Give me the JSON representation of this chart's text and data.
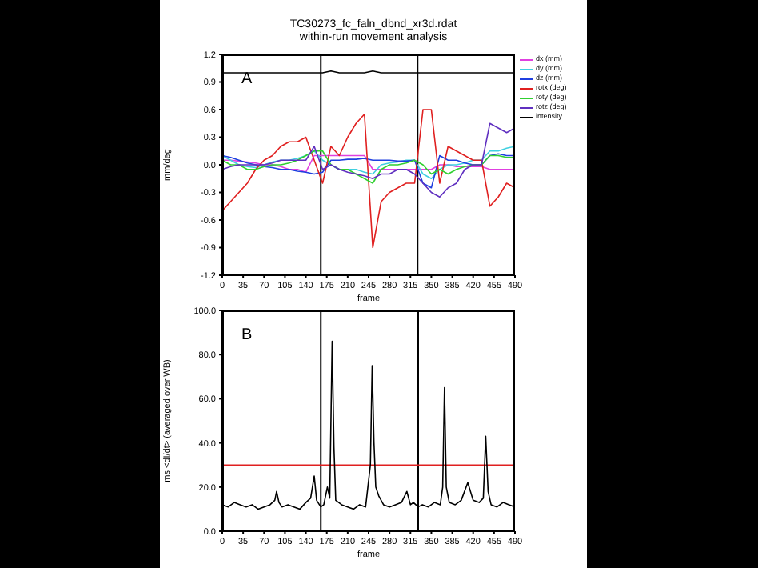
{
  "chart_data": [
    {
      "type": "line",
      "title": "TC30273_fc_faln_dbnd_xr3d.rdat",
      "subtitle": "within-run movement analysis",
      "xlabel": "frame",
      "ylabel": "mm/deg",
      "annotations": [
        "A"
      ],
      "legend": "top right",
      "x": [
        0,
        14,
        28,
        42,
        56,
        70,
        84,
        98,
        112,
        126,
        140,
        154,
        168,
        182,
        196,
        210,
        224,
        238,
        252,
        266,
        280,
        294,
        308,
        322,
        336,
        350,
        364,
        378,
        392,
        406,
        420,
        434,
        448,
        462,
        476,
        490
      ],
      "xlim": [
        0,
        490
      ],
      "xticks": [
        0,
        35,
        70,
        105,
        140,
        175,
        210,
        245,
        280,
        315,
        350,
        385,
        420,
        455,
        490
      ],
      "ylim": [
        -1.2,
        1.2
      ],
      "yticks": [
        -1.2,
        -0.9,
        -0.6,
        -0.3,
        {
          "value": 0,
          "label": "0.0"
        },
        0.3,
        0.6,
        0.9,
        1.2
      ],
      "ref_lines": [
        {
          "axis": "x",
          "value": 165,
          "color": "#000000"
        },
        {
          "axis": "x",
          "value": 327,
          "color": "#000000"
        }
      ],
      "series": [
        {
          "name": "dx (mm)",
          "color": "#e040e0",
          "values": [
            0.05,
            0.05,
            0.04,
            0.03,
            0.02,
            0.0,
            0.0,
            -0.02,
            -0.05,
            -0.05,
            -0.08,
            0.1,
            0.1,
            0.1,
            0.1,
            0.1,
            0.1,
            0.1,
            -0.05,
            -0.05,
            -0.05,
            -0.05,
            -0.05,
            -0.05,
            -0.05,
            -0.05,
            0.0,
            0.0,
            -0.02,
            -0.02,
            -0.02,
            -0.02,
            -0.05,
            -0.05,
            -0.05,
            -0.05
          ]
        },
        {
          "name": "dy (mm)",
          "color": "#40d0e0",
          "values": [
            0.1,
            0.05,
            0.0,
            -0.02,
            -0.03,
            0.0,
            0.03,
            0.05,
            0.05,
            0.07,
            0.1,
            0.15,
            0.05,
            0.0,
            -0.05,
            -0.05,
            -0.05,
            -0.08,
            -0.1,
            0.0,
            0.02,
            0.03,
            0.05,
            0.05,
            -0.1,
            -0.15,
            -0.05,
            0.0,
            0.0,
            0.02,
            0.05,
            0.05,
            0.15,
            0.15,
            0.18,
            0.2
          ]
        },
        {
          "name": "dz (mm)",
          "color": "#2040e0",
          "values": [
            0.1,
            0.08,
            0.05,
            0.02,
            0.0,
            -0.02,
            -0.03,
            -0.05,
            -0.05,
            -0.07,
            -0.08,
            -0.1,
            -0.08,
            0.05,
            0.05,
            0.06,
            0.06,
            0.07,
            0.05,
            0.05,
            0.05,
            0.04,
            0.04,
            0.05,
            -0.2,
            -0.25,
            0.1,
            0.05,
            0.05,
            0.02,
            0.0,
            0.0,
            0.1,
            0.12,
            0.1,
            0.1
          ]
        },
        {
          "name": "rotx (deg)",
          "color": "#e02020",
          "values": [
            -0.5,
            -0.4,
            -0.3,
            -0.2,
            -0.05,
            0.05,
            0.1,
            0.2,
            0.25,
            0.25,
            0.3,
            0.05,
            -0.2,
            0.2,
            0.1,
            0.3,
            0.45,
            0.55,
            -0.9,
            -0.4,
            -0.3,
            -0.25,
            -0.2,
            -0.2,
            0.6,
            0.6,
            -0.2,
            0.2,
            0.15,
            0.1,
            0.05,
            0.05,
            -0.45,
            -0.35,
            -0.2,
            -0.25
          ]
        },
        {
          "name": "roty (deg)",
          "color": "#30d030",
          "values": [
            0.05,
            0.0,
            0.0,
            -0.05,
            -0.05,
            -0.02,
            0.0,
            0.0,
            0.02,
            0.05,
            0.1,
            0.15,
            0.15,
            0.0,
            -0.05,
            -0.05,
            -0.1,
            -0.15,
            -0.2,
            -0.05,
            0.0,
            0.0,
            0.02,
            0.05,
            0.0,
            -0.1,
            -0.05,
            -0.1,
            -0.05,
            -0.02,
            0.0,
            0.0,
            0.1,
            0.1,
            0.08,
            0.08
          ]
        },
        {
          "name": "rotz (deg)",
          "color": "#6030c0",
          "values": [
            -0.05,
            -0.02,
            0.0,
            0.0,
            0.0,
            0.0,
            0.02,
            0.05,
            0.05,
            0.05,
            0.05,
            0.2,
            -0.05,
            0.0,
            -0.05,
            -0.08,
            -0.1,
            -0.12,
            -0.15,
            -0.1,
            -0.1,
            -0.05,
            -0.05,
            -0.1,
            -0.2,
            -0.3,
            -0.35,
            -0.25,
            -0.2,
            -0.05,
            0.0,
            0.0,
            0.45,
            0.4,
            0.35,
            0.4
          ]
        },
        {
          "name": "intensity",
          "color": "#000000",
          "values": [
            1.0,
            1.0,
            1.0,
            1.0,
            1.0,
            1.0,
            1.0,
            1.0,
            1.0,
            1.0,
            1.0,
            1.0,
            1.0,
            1.02,
            1.0,
            1.0,
            1.0,
            1.0,
            1.02,
            1.0,
            1.0,
            1.0,
            1.0,
            1.0,
            1.0,
            1.0,
            1.0,
            1.0,
            1.0,
            1.0,
            1.0,
            1.0,
            1.0,
            1.0,
            1.0,
            1.0
          ]
        }
      ]
    },
    {
      "type": "line",
      "xlabel": "frame",
      "ylabel": "ms <dI/dt> (averaged over WB)",
      "annotations": [
        "B"
      ],
      "x": [
        0,
        10,
        20,
        30,
        40,
        50,
        60,
        70,
        80,
        88,
        91,
        95,
        100,
        110,
        120,
        130,
        140,
        148,
        154,
        158,
        165,
        170,
        176,
        180,
        184,
        187,
        190,
        200,
        210,
        220,
        230,
        240,
        248,
        251,
        254,
        257,
        262,
        270,
        280,
        290,
        300,
        309,
        315,
        320,
        328,
        335,
        345,
        355,
        365,
        369,
        372,
        375,
        380,
        390,
        400,
        411,
        420,
        430,
        437,
        441,
        445,
        450,
        460,
        470,
        480,
        490
      ],
      "xlim": [
        0,
        490
      ],
      "xticks": [
        0,
        35,
        70,
        105,
        140,
        175,
        210,
        245,
        280,
        315,
        350,
        385,
        420,
        455,
        490
      ],
      "ylim": [
        0,
        100
      ],
      "yticks": [
        {
          "value": 0,
          "label": "0.0"
        },
        {
          "value": 20,
          "label": "20.0"
        },
        {
          "value": 40,
          "label": "40.0"
        },
        {
          "value": 60,
          "label": "60.0"
        },
        {
          "value": 80,
          "label": "80.0"
        },
        {
          "value": 100,
          "label": "100.0"
        }
      ],
      "ref_lines": [
        {
          "axis": "x",
          "value": 165,
          "color": "#000000"
        },
        {
          "axis": "x",
          "value": 328,
          "color": "#000000"
        },
        {
          "axis": "y",
          "value": 30,
          "color": "#e02020"
        }
      ],
      "series": [
        {
          "color": "#000000",
          "values": [
            12,
            11,
            13,
            12,
            11,
            12,
            10,
            11,
            12,
            14,
            18,
            13,
            11,
            12,
            11,
            10,
            13,
            15,
            25,
            14,
            11,
            12,
            20,
            15,
            86,
            38,
            14,
            12,
            11,
            10,
            12,
            11,
            30,
            75,
            40,
            20,
            16,
            12,
            11,
            12,
            13,
            18,
            12,
            13,
            11,
            12,
            11,
            13,
            12,
            20,
            65,
            20,
            13,
            12,
            14,
            22,
            14,
            13,
            15,
            43,
            18,
            12,
            11,
            13,
            12,
            11
          ]
        }
      ]
    }
  ]
}
